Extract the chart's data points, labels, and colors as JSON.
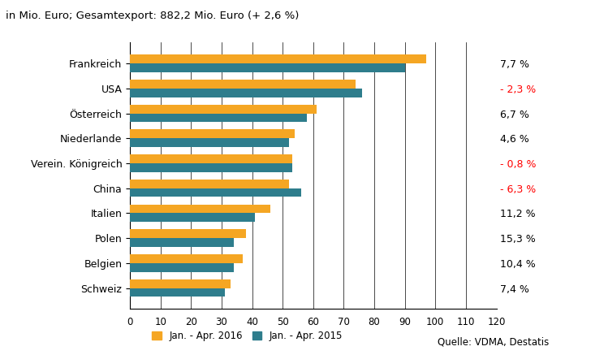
{
  "title": "in Mio. Euro; Gesamtexport: 882,2 Mio. Euro (+ 2,6 %)",
  "categories": [
    "Frankreich",
    "USA",
    "Österreich",
    "Niederlande",
    "Verein. Königreich",
    "China",
    "Italien",
    "Polen",
    "Belgien",
    "Schweiz"
  ],
  "values_2016": [
    97,
    74,
    61,
    54,
    53,
    52,
    46,
    38,
    37,
    33
  ],
  "values_2015": [
    90,
    76,
    58,
    52,
    53,
    56,
    41,
    34,
    34,
    31
  ],
  "pct_changes": [
    "7,7 %",
    "- 2,3 %",
    "6,7 %",
    "4,6 %",
    "- 0,8 %",
    "- 6,3 %",
    "11,2 %",
    "15,3 %",
    "10,4 %",
    "7,4 %"
  ],
  "pct_colors": [
    "black",
    "red",
    "black",
    "black",
    "red",
    "red",
    "black",
    "black",
    "black",
    "black"
  ],
  "color_2016": "#F5A623",
  "color_2015": "#2E7D8C",
  "legend_2016": "Jan. - Apr. 2016",
  "legend_2015": "Jan. - Apr. 2015",
  "source_text": "Quelle: VDMA, Destatis",
  "xlim": [
    0,
    120
  ],
  "xticks": [
    0,
    10,
    20,
    30,
    40,
    50,
    60,
    70,
    80,
    90,
    100,
    110,
    120
  ],
  "bar_height": 0.35,
  "background_color": "#ffffff"
}
